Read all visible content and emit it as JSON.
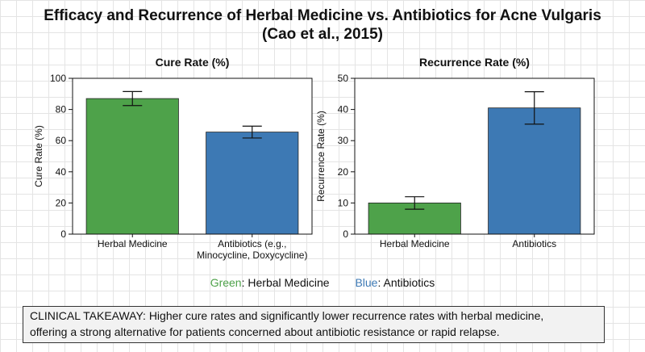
{
  "title_line1": "Efficacy and Recurrence of Herbal Medicine vs. Antibiotics for Acne Vulgaris",
  "title_line2": "(Cao et al., 2015)",
  "colors": {
    "herbal": "#4ea24a",
    "antibiotics": "#3d79b4",
    "grid_bg": "#ffffff"
  },
  "chart_data": [
    {
      "type": "bar",
      "title": "Cure Rate (%)",
      "ylabel": "Cure Rate (%)",
      "xlabel": "",
      "categories": [
        [
          "Herbal Medicine"
        ],
        [
          "Antibiotics (e.g.,",
          "Minocycline, Doxycycline)"
        ]
      ],
      "values": [
        87,
        65.5
      ],
      "error": [
        4.5,
        3.8
      ],
      "ylim": [
        0,
        100
      ],
      "yticks": [
        0,
        20,
        40,
        60,
        80,
        100
      ],
      "colors": [
        "#4ea24a",
        "#3d79b4"
      ]
    },
    {
      "type": "bar",
      "title": "Recurrence Rate (%)",
      "ylabel": "Recurrence Rate (%)",
      "xlabel": "",
      "categories": [
        [
          "Herbal Medicine"
        ],
        [
          "Antibiotics"
        ]
      ],
      "values": [
        10,
        40.5
      ],
      "error": [
        2,
        5.2
      ],
      "ylim": [
        0,
        50
      ],
      "yticks": [
        0,
        10,
        20,
        30,
        40,
        50
      ],
      "colors": [
        "#4ea24a",
        "#3d79b4"
      ]
    }
  ],
  "legend": [
    {
      "color_word": "Green",
      "rest": ": Herbal Medicine",
      "color": "#4ea24a"
    },
    {
      "color_word": "Blue",
      "rest": ": Antibiotics",
      "color": "#3d79b4"
    }
  ],
  "takeaway_line1": "CLINICAL TAKEAWAY: Higher cure rates and significantly lower recurrence rates with herbal medicine,",
  "takeaway_line2": "offering a strong alternative for patients concerned about antibiotic resistance or rapid relapse."
}
